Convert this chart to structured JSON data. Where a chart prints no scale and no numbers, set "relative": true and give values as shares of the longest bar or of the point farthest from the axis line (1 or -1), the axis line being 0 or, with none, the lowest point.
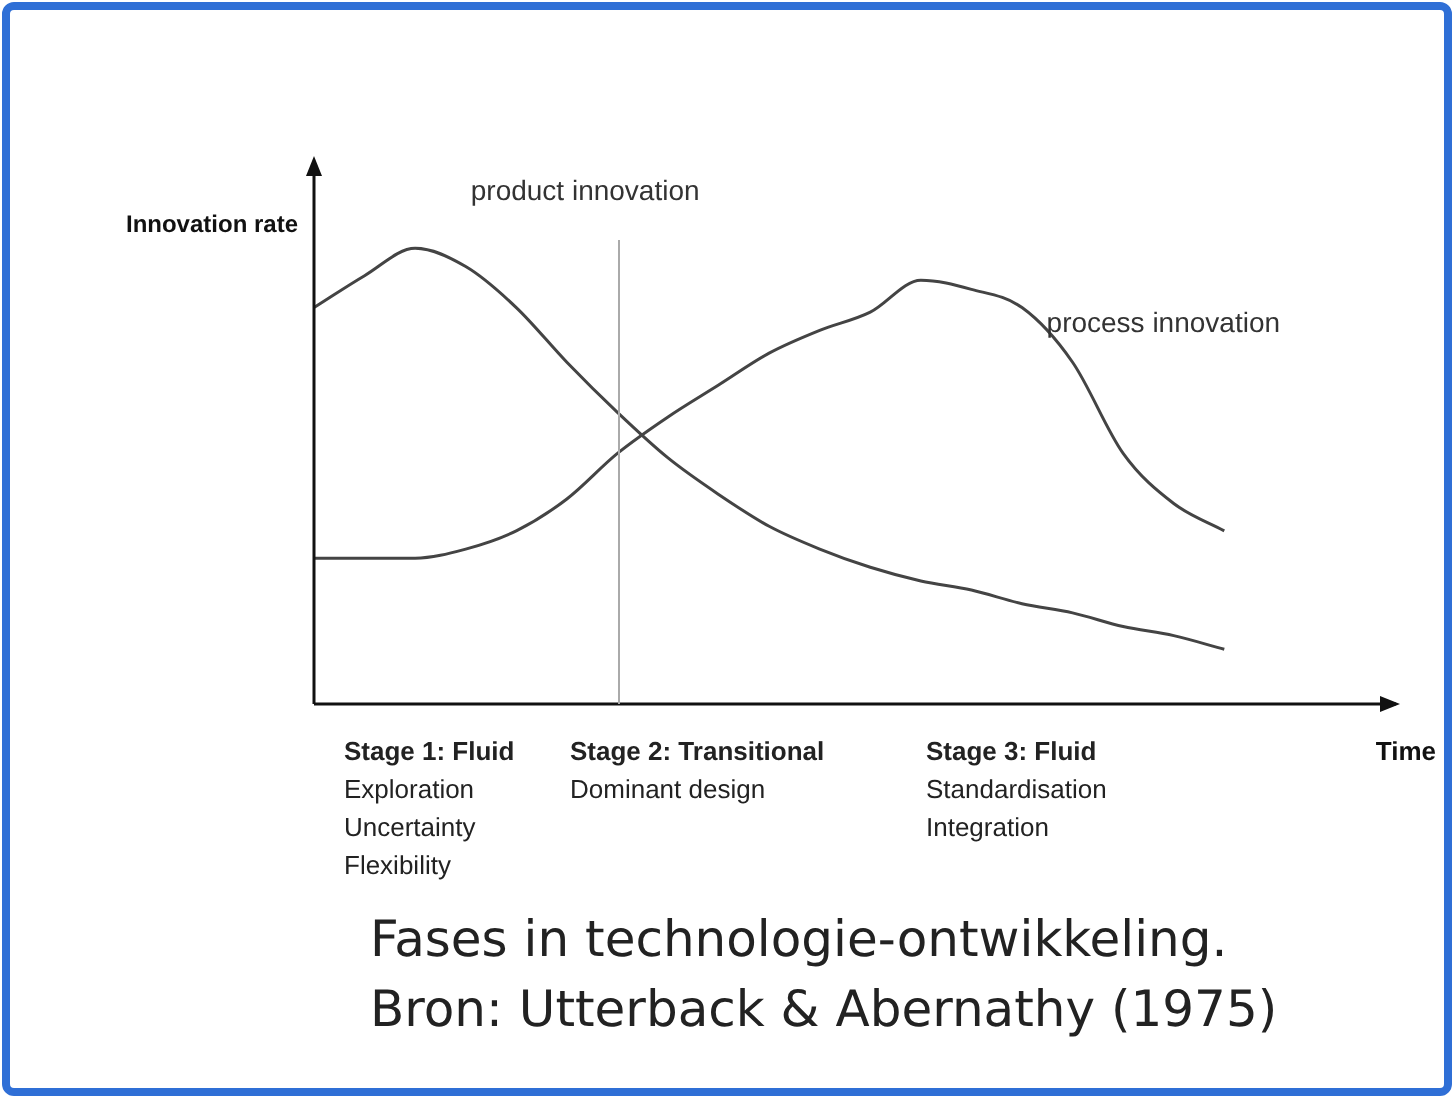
{
  "chart_data": {
    "type": "line",
    "relative": true,
    "ylabel": "Innovation rate",
    "xlabel": "Time",
    "categories": [
      null,
      null,
      null,
      null,
      null,
      null,
      null,
      null,
      null,
      null,
      null,
      null,
      null,
      null,
      null,
      null,
      null,
      null,
      null,
      null,
      null,
      null
    ],
    "series": [
      {
        "name": "product innovation",
        "color": "#444444",
        "values": [
          0.87,
          0.94,
          1,
          0.96,
          0.87,
          0.75,
          0.64,
          0.54,
          0.46,
          0.39,
          0.34,
          0.3,
          0.27,
          0.25,
          0.22,
          0.2,
          0.17,
          0.15,
          0.12,
          null,
          null,
          null
        ]
      },
      {
        "name": "process innovation",
        "color": "#444444",
        "values": [
          0.32,
          0.32,
          0.32,
          0.34,
          0.38,
          0.45,
          0.55,
          0.63,
          0.7,
          0.77,
          0.82,
          0.86,
          0.93,
          0.91,
          0.87,
          0.75,
          0.55,
          0.44,
          0.38,
          null,
          null,
          null
        ]
      }
    ],
    "annotations": [
      "Stage 1: Fluid\nExploration\nUncertainty\nFlexibility",
      "Stage 2: Transitional\nDominant design",
      "Stage 3: Fluid\nStandardisation\nIntegration",
      "Fases in technologie-ontwikkeling.\nBron: Utterback & Abernathy (1975)"
    ],
    "grid": false,
    "legend": false,
    "marker": "none",
    "line_style": "solid"
  }
}
